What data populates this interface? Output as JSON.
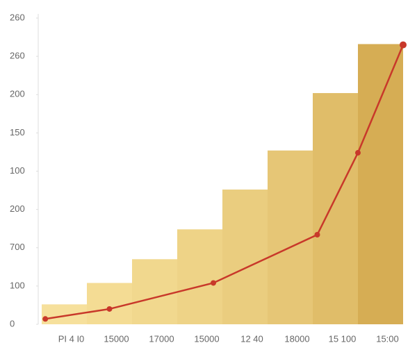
{
  "chart_data": {
    "type": "bar",
    "categories": [
      "PI 4 I0",
      "15000",
      "17000",
      "15000",
      "12 40",
      "18000",
      "15 100",
      "15:00"
    ],
    "xlim": [
      0,
      8
    ],
    "ylim": [
      0,
      400
    ],
    "yticks": [
      0,
      {
        "value": 50,
        "label": "100"
      },
      {
        "value": 100,
        "label": "700"
      },
      {
        "value": 150,
        "label": "200"
      },
      {
        "value": 200,
        "label": "100"
      },
      {
        "value": 250,
        "label": "150"
      },
      {
        "value": 300,
        "label": "200"
      },
      {
        "value": 350,
        "label": "260"
      },
      {
        "value": 400,
        "label": "260"
      }
    ],
    "series": [
      {
        "type": "bar",
        "values": [
          26,
          54,
          85,
          124,
          176,
          227,
          302,
          366
        ],
        "colors": [
          "#f6e09c",
          "#f4dc94",
          "#f1d88e",
          "#eed387",
          "#eacd7f",
          "#e6c676",
          "#e0bd69",
          "#d6ad54"
        ]
      },
      {
        "type": "line",
        "color": "#c8382a",
        "x": [
          0.08,
          1.5,
          3.8,
          6.1,
          7.0,
          8.0
        ],
        "values": [
          7,
          20,
          54,
          117,
          224,
          365
        ]
      }
    ]
  }
}
